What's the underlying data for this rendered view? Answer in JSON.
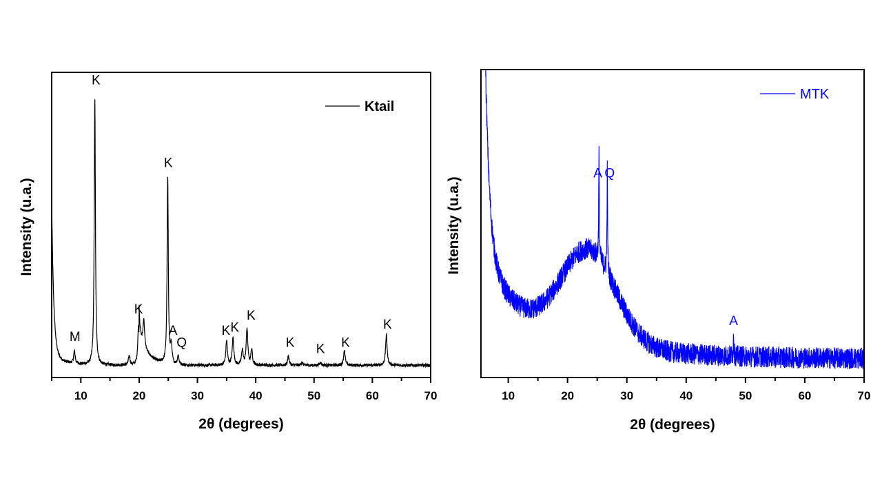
{
  "chart_data": [
    {
      "type": "line",
      "title": "",
      "xlabel": "2θ (degrees)",
      "ylabel": "Intensity (u.a.)",
      "xlim": [
        5,
        70
      ],
      "ylim": [
        0,
        100
      ],
      "xticks": [
        10,
        20,
        30,
        40,
        50,
        60,
        70
      ],
      "xtick_labels": [
        "10",
        "20",
        "30",
        "40",
        "50",
        "60",
        "70"
      ],
      "yticks_visible": false,
      "grid": false,
      "legend": {
        "label": "Ktail",
        "placement": "top-right",
        "bold": true
      },
      "series": [
        {
          "name": "Ktail",
          "color": "#000000",
          "baseline": 4,
          "low_angle_rise": {
            "x_start": 5,
            "peak_intensity": 50
          },
          "peaks": [
            {
              "x": 8.9,
              "intensity": 8,
              "label": "M"
            },
            {
              "x": 12.4,
              "intensity": 92,
              "label": "K"
            },
            {
              "x": 18.3,
              "intensity": 7,
              "label": ""
            },
            {
              "x": 19.9,
              "intensity": 17,
              "label": "K"
            },
            {
              "x": 20.8,
              "intensity": 13,
              "label": ""
            },
            {
              "x": 24.9,
              "intensity": 65,
              "label": "K"
            },
            {
              "x": 25.5,
              "intensity": 10,
              "label": "A"
            },
            {
              "x": 26.7,
              "intensity": 7,
              "label": "Q"
            },
            {
              "x": 35.0,
              "intensity": 12,
              "label": "K"
            },
            {
              "x": 36.1,
              "intensity": 13,
              "label": "K"
            },
            {
              "x": 37.7,
              "intensity": 9,
              "label": ""
            },
            {
              "x": 38.5,
              "intensity": 16,
              "label": "K"
            },
            {
              "x": 39.3,
              "intensity": 9,
              "label": ""
            },
            {
              "x": 45.6,
              "intensity": 7,
              "label": "K"
            },
            {
              "x": 47.9,
              "intensity": 5,
              "label": ""
            },
            {
              "x": 51.1,
              "intensity": 5,
              "label": "K"
            },
            {
              "x": 55.2,
              "intensity": 9,
              "label": "K"
            },
            {
              "x": 62.4,
              "intensity": 14,
              "label": "K"
            }
          ]
        }
      ],
      "annotations": [
        {
          "text": "M",
          "x": 9.0,
          "y": 12
        },
        {
          "text": "K",
          "x": 12.6,
          "y": 96
        },
        {
          "text": "K",
          "x": 19.9,
          "y": 21
        },
        {
          "text": "K",
          "x": 25.0,
          "y": 69
        },
        {
          "text": "A",
          "x": 25.8,
          "y": 14
        },
        {
          "text": "Q",
          "x": 27.3,
          "y": 10
        },
        {
          "text": "K",
          "x": 34.9,
          "y": 14
        },
        {
          "text": "K",
          "x": 36.4,
          "y": 15
        },
        {
          "text": "K",
          "x": 39.2,
          "y": 19
        },
        {
          "text": "K",
          "x": 45.9,
          "y": 10
        },
        {
          "text": "K",
          "x": 51.1,
          "y": 8
        },
        {
          "text": "K",
          "x": 55.4,
          "y": 10
        },
        {
          "text": "K",
          "x": 62.6,
          "y": 16
        }
      ]
    },
    {
      "type": "line",
      "title": "",
      "xlabel": "2θ (degrees)",
      "ylabel": "Intensity (u.a.)",
      "xlim": [
        5.4,
        70
      ],
      "ylim": [
        0,
        100
      ],
      "xticks": [
        10,
        20,
        30,
        40,
        50,
        60,
        70
      ],
      "xtick_labels": [
        "10",
        "20",
        "30",
        "40",
        "50",
        "60",
        "70"
      ],
      "yticks_visible": false,
      "grid": false,
      "legend": {
        "label": "MTK",
        "placement": "top-right",
        "bold": false
      },
      "series": [
        {
          "name": "MTK",
          "color": "#0000ff",
          "baseline": 6,
          "low_angle_rise": {
            "x_start": 6,
            "peak_intensity": 100
          },
          "amorphous_hump": {
            "center": 23.5,
            "intensity": 30
          },
          "noise": "high",
          "peaks": [
            {
              "x": 25.3,
              "intensity": 61,
              "label": "A"
            },
            {
              "x": 26.7,
              "intensity": 61,
              "label": "Q"
            },
            {
              "x": 48.0,
              "intensity": 13,
              "label": "A"
            }
          ]
        }
      ],
      "annotations": [
        {
          "text": "A",
          "x": 25.1,
          "y": 65
        },
        {
          "text": "Q",
          "x": 27.1,
          "y": 65
        },
        {
          "text": "A",
          "x": 48.0,
          "y": 17
        }
      ]
    }
  ]
}
